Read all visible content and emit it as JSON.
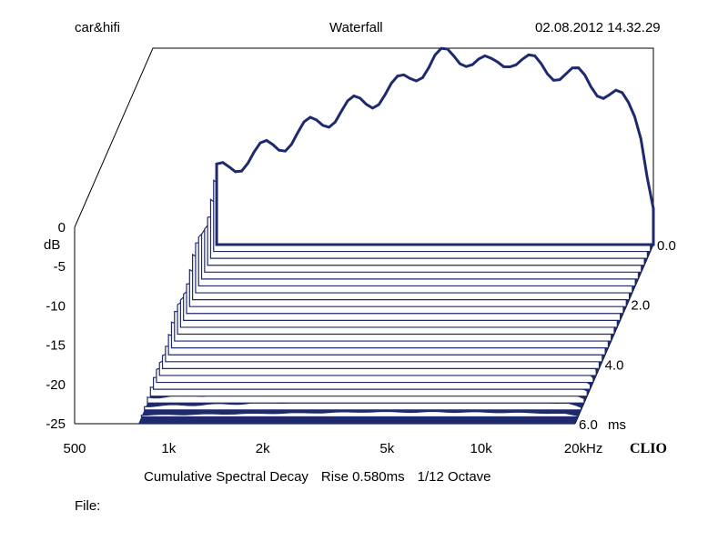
{
  "header": {
    "left": "car&hifi",
    "center": "Waterfall",
    "right": "02.08.2012 14.32.29"
  },
  "colors": {
    "surface": "#1f2a6e",
    "line": "#1f2a6e",
    "background": "#ffffff"
  },
  "brand": "CLIO",
  "footer": {
    "analysis": "Cumulative Spectral Decay",
    "rise": "Rise 0.580ms",
    "smoothing": "1/12 Octave"
  },
  "file_label": "File:",
  "chart_data": {
    "type": "area",
    "subtype": "waterfall-3d",
    "title": "Waterfall",
    "ylabel": "dB",
    "xlabel": "Hz",
    "zlabel": "ms",
    "x_scale": "log",
    "xlim": [
      500,
      20000
    ],
    "ylim": [
      -25,
      0
    ],
    "zlim": [
      0,
      6
    ],
    "x_ticks": [
      500,
      1000,
      2000,
      5000,
      10000,
      20000
    ],
    "x_tick_labels": [
      "500",
      "1k",
      "2k",
      "5k",
      "10k",
      "20k"
    ],
    "y_ticks": [
      0,
      -5,
      -10,
      -15,
      -20,
      -25
    ],
    "y_tick_labels": [
      "0",
      "-5",
      "-10",
      "-15",
      "-20",
      "-25"
    ],
    "z_ticks": [
      0,
      2,
      4,
      6
    ],
    "z_tick_labels": [
      "0.0",
      "2.0",
      "4.0",
      "6.0"
    ],
    "series": [
      {
        "name": "0.0 ms",
        "x": [
          800,
          1000,
          1300,
          1600,
          2000,
          2500,
          3000,
          3500,
          4000,
          4500,
          5000,
          6000,
          7000,
          8000,
          10000,
          12000,
          15000,
          18000,
          20000
        ],
        "y": [
          -16,
          -14,
          -12,
          -10,
          -8,
          -6.5,
          -5,
          -3,
          -1.5,
          -1,
          -1,
          -2.5,
          -1,
          -2,
          -3,
          -4,
          -6,
          -9,
          -20
        ]
      },
      {
        "name": "6.0 ms",
        "x": [
          800,
          1000,
          2000,
          5000,
          10000,
          20000
        ],
        "y": [
          -25,
          -25,
          -25,
          -25,
          -25,
          -25
        ]
      }
    ]
  }
}
